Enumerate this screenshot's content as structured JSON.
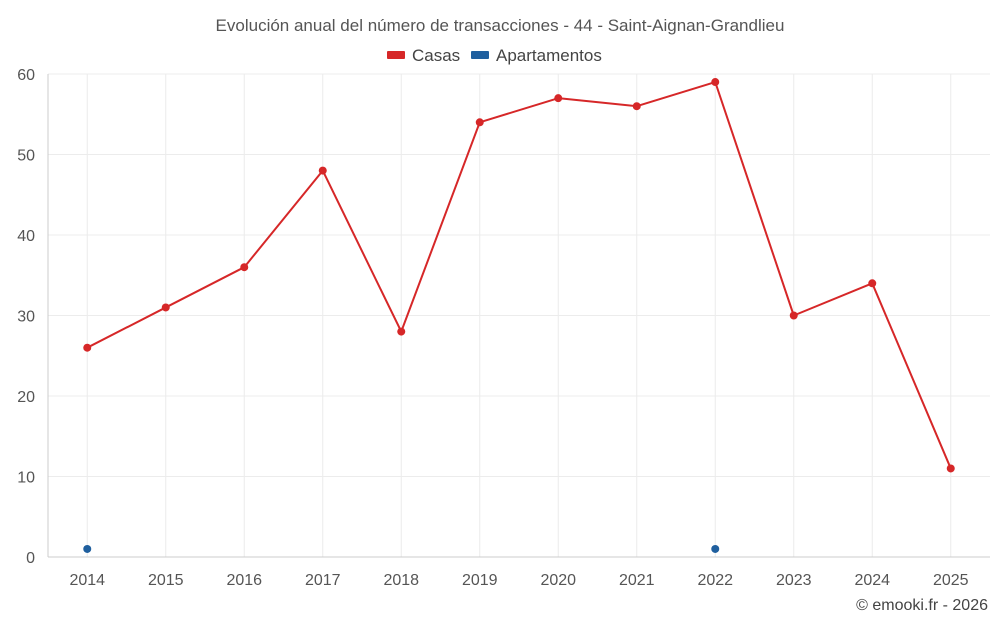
{
  "chart_data": {
    "type": "line",
    "title": "Evolución anual del número de transacciones - 44 - Saint-Aignan-Grandlieu",
    "categories": [
      "2014",
      "2015",
      "2016",
      "2017",
      "2018",
      "2019",
      "2020",
      "2021",
      "2022",
      "2023",
      "2024",
      "2025"
    ],
    "series": [
      {
        "name": "Casas",
        "color": "#d62728",
        "values": [
          26,
          31,
          36,
          48,
          28,
          54,
          57,
          56,
          59,
          30,
          34,
          11
        ]
      },
      {
        "name": "Apartamentos",
        "color": "#1f5f9e",
        "values": [
          1,
          null,
          null,
          null,
          null,
          null,
          null,
          null,
          1,
          null,
          null,
          null
        ]
      }
    ],
    "ylim": [
      0,
      60
    ],
    "yticks": [
      0,
      10,
      20,
      30,
      40,
      50,
      60
    ],
    "grid": true,
    "legend_position": "top-center",
    "xlabel": "",
    "ylabel": ""
  },
  "credit": "© emooki.fr - 2026"
}
